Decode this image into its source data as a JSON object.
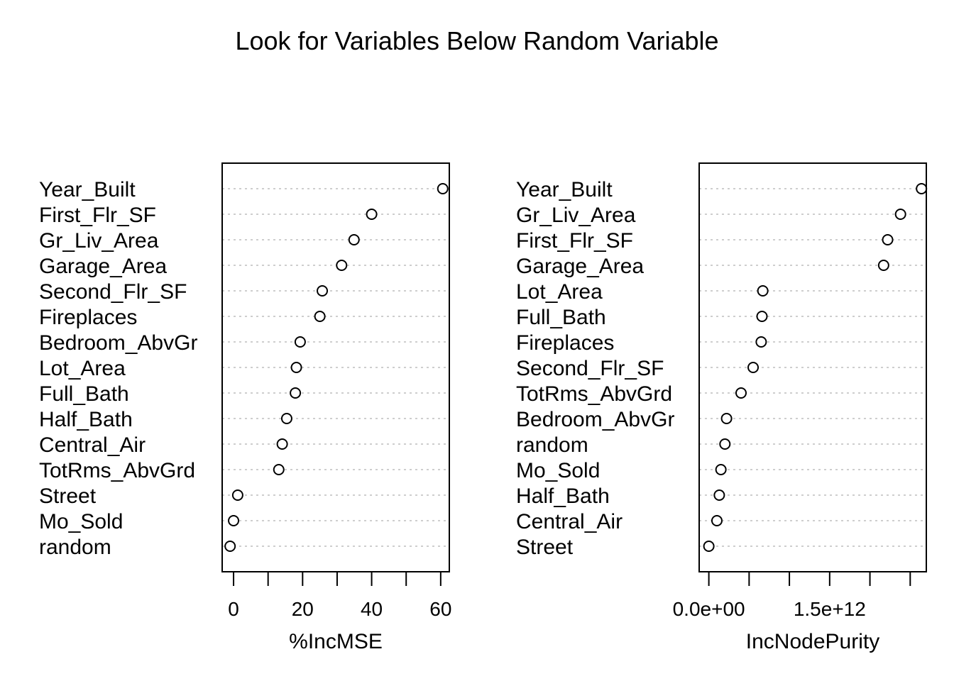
{
  "chart_data": {
    "title": "Look for Variables Below Random Variable",
    "panels": [
      {
        "type": "scatter",
        "xlabel": "%IncMSE",
        "xlim": [
          -3.3,
          62.5
        ],
        "ticks": [
          0,
          10,
          20,
          30,
          40,
          50,
          60
        ],
        "tick_labels": [
          "0",
          "",
          "20",
          "",
          "40",
          "",
          "60"
        ],
        "categories": [
          "Year_Built",
          "First_Flr_SF",
          "Gr_Liv_Area",
          "Garage_Area",
          "Second_Flr_SF",
          "Fireplaces",
          "Bedroom_AbvGr",
          "Lot_Area",
          "Full_Bath",
          "Half_Bath",
          "Central_Air",
          "TotRms_AbvGrd",
          "Street",
          "Mo_Sold",
          "random"
        ],
        "values": [
          60.6,
          40.0,
          34.9,
          31.3,
          25.7,
          25.0,
          19.3,
          18.2,
          17.9,
          15.4,
          14.1,
          13.1,
          1.2,
          0.0,
          -1.0
        ]
      },
      {
        "type": "scatter",
        "xlabel": "IncNodePurity",
        "xlim": [
          -120000000000.0,
          2700000000000.0
        ],
        "ticks": [
          0,
          500000000000.0,
          1000000000000.0,
          1500000000000.0,
          2000000000000.0,
          2500000000000.0
        ],
        "tick_labels": [
          "0.0e+00",
          "",
          "",
          "1.5e+12",
          "",
          ""
        ],
        "categories": [
          "Year_Built",
          "Gr_Liv_Area",
          "First_Flr_SF",
          "Garage_Area",
          "Lot_Area",
          "Full_Bath",
          "Fireplaces",
          "Second_Flr_SF",
          "TotRms_AbvGrd",
          "Bedroom_AbvGr",
          "random",
          "Mo_Sold",
          "Half_Bath",
          "Central_Air",
          "Street"
        ],
        "values": [
          2640000000000.0,
          2380000000000.0,
          2220000000000.0,
          2170000000000.0,
          670000000000.0,
          660000000000.0,
          650000000000.0,
          550000000000.0,
          400000000000.0,
          220000000000.0,
          200000000000.0,
          150000000000.0,
          130000000000.0,
          100000000000.0,
          0.0
        ]
      }
    ]
  }
}
